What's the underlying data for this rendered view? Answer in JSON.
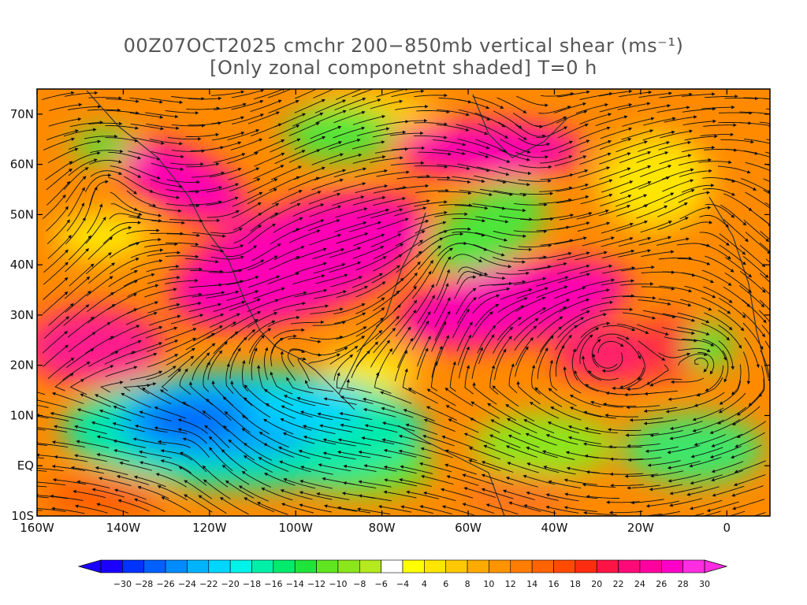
{
  "title": {
    "line1": "00Z07OCT2025 cmchr 200−850mb vertical shear (ms⁻¹)",
    "line2": "[Only zonal componetnt shaded] T=0 h"
  },
  "axes": {
    "lat_ticks": [
      "70N",
      "60N",
      "50N",
      "40N",
      "30N",
      "20N",
      "10N",
      "EQ",
      "10S"
    ],
    "lon_ticks": [
      "160W",
      "140W",
      "120W",
      "100W",
      "80W",
      "60W",
      "40W",
      "20W",
      "0"
    ],
    "lat_values": [
      70,
      60,
      50,
      40,
      30,
      20,
      10,
      0,
      -10
    ],
    "lon_values": [
      -160,
      -140,
      -120,
      -100,
      -80,
      -60,
      -40,
      -20,
      0
    ],
    "lat_range": [
      -10,
      75
    ],
    "lon_range": [
      -160,
      10
    ]
  },
  "colorbar": {
    "labels": [
      "−30",
      "−28",
      "−26",
      "−24",
      "−22",
      "−20",
      "−18",
      "−16",
      "−14",
      "−12",
      "−10",
      "−8",
      "−6",
      "−4",
      "4",
      "6",
      "8",
      "10",
      "12",
      "14",
      "16",
      "18",
      "20",
      "22",
      "24",
      "26",
      "28",
      "30"
    ],
    "colors": [
      "#1a00ff",
      "#0033ff",
      "#0061ff",
      "#008cff",
      "#00b3ff",
      "#00d6ff",
      "#00f2e8",
      "#00f0a8",
      "#00eb6c",
      "#1fe53a",
      "#5fe620",
      "#8ce61c",
      "#b4ea1e",
      "#ffffff",
      "#ffff00",
      "#ffe600",
      "#ffc800",
      "#ffaa00",
      "#ff9400",
      "#ff7d00",
      "#ff6400",
      "#ff4b00",
      "#ff2d0f",
      "#ff1446",
      "#ff0a78",
      "#ff00a0",
      "#ff00c8",
      "#ff2de1"
    ],
    "underflow_color": "#1a00ff",
    "overflow_color": "#ff2de1"
  }
}
